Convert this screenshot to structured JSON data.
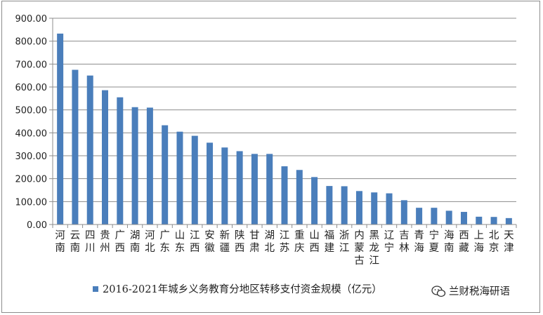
{
  "chart_data": {
    "type": "bar",
    "categories": [
      "河南",
      "云南",
      "四川",
      "贵州",
      "广西",
      "湖南",
      "河北",
      "广东",
      "山东",
      "江西",
      "安徽",
      "新疆",
      "陕西",
      "甘肃",
      "湖北",
      "江苏",
      "重庆",
      "山西",
      "福建",
      "浙江",
      "内蒙古",
      "黑龙江",
      "辽宁",
      "吉林",
      "青海",
      "宁夏",
      "海南",
      "西藏",
      "上海",
      "北京",
      "天津"
    ],
    "series": [
      {
        "name": "2016-2021年城乡义务教育分地区转移支付资金规模（亿元）",
        "values": [
          833,
          675,
          650,
          586,
          555,
          512,
          510,
          433,
          405,
          387,
          357,
          336,
          320,
          308,
          308,
          254,
          238,
          207,
          168,
          167,
          146,
          140,
          136,
          106,
          73,
          73,
          60,
          55,
          34,
          33,
          28
        ],
        "color": "#4a7ebb"
      }
    ],
    "ylim": [
      0,
      900
    ],
    "yticks": [
      "0.00",
      "100.00",
      "200.00",
      "300.00",
      "400.00",
      "500.00",
      "600.00",
      "700.00",
      "800.00",
      "900.00"
    ],
    "grid": true,
    "legend_position": "bottom",
    "legend_text": "2016-2021年城乡义务教育分地区转移支付资金规模（亿元）"
  },
  "watermark": {
    "icon": "wechat-icon",
    "text": "兰财税海研语"
  }
}
